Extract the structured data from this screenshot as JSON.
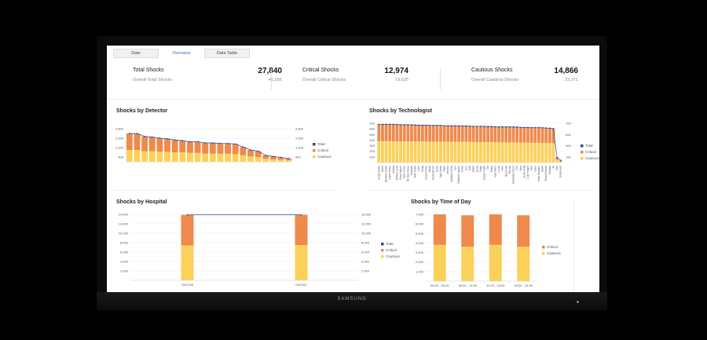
{
  "tabs": [
    "Date",
    "Overview",
    "Data Table"
  ],
  "active_tab": 1,
  "kpis": [
    {
      "label": "Total Shocks",
      "value": "27,840",
      "sub_label": "Overall Total Shocks",
      "sub_value": "41,556"
    },
    {
      "label": "Critical Shocks",
      "value": "12,974",
      "sub_label": "Overall Critical Shocks",
      "sub_value": "19,525"
    },
    {
      "label": "Cautious Shocks",
      "value": "14,866",
      "sub_label": "Overall Cautious Shocks",
      "sub_value": "22,371"
    }
  ],
  "brand": "SAMSUNG",
  "colors": {
    "total": "#2b4c9b",
    "critical": "#ef8a4c",
    "cautious": "#fbd15b",
    "grid": "#ececec"
  },
  "chart_data": [
    {
      "type": "bar",
      "title": "Shocks by Detector",
      "legend": [
        "Total",
        "Critical",
        "Cautious"
      ],
      "legend_position": "right",
      "ylim": [
        0,
        2800
      ],
      "yticks": [
        "2,800",
        "2,000",
        "1,200",
        "400"
      ],
      "y2ticks": [
        "2,800",
        "2,000",
        "1,200",
        "400"
      ],
      "categories": [
        "",
        "",
        "",
        "",
        "",
        "",
        "",
        "",
        "",
        "",
        "",
        "",
        "",
        "",
        "",
        "",
        "",
        "",
        "",
        "",
        "",
        ""
      ],
      "series": [
        {
          "name": "Critical",
          "values": [
            1400,
            1400,
            1250,
            1200,
            1150,
            1100,
            1050,
            1000,
            950,
            950,
            900,
            900,
            880,
            870,
            860,
            700,
            550,
            500,
            300,
            250,
            200,
            150
          ]
        },
        {
          "name": "Cautious",
          "values": [
            1000,
            1000,
            900,
            900,
            850,
            850,
            800,
            800,
            750,
            750,
            700,
            700,
            680,
            680,
            650,
            550,
            450,
            400,
            250,
            200,
            170,
            130
          ]
        },
        {
          "name": "Total",
          "values": [
            2400,
            2400,
            2150,
            2100,
            2000,
            1950,
            1850,
            1800,
            1700,
            1700,
            1600,
            1600,
            1560,
            1550,
            1510,
            1250,
            1000,
            900,
            550,
            450,
            370,
            280
          ]
        }
      ]
    },
    {
      "type": "bar",
      "title": "Shocks by Technologist",
      "legend": [
        "Total",
        "Critical",
        "Cautious"
      ],
      "legend_position": "right",
      "ylim": [
        0,
        700
      ],
      "yticks": [
        "700",
        "600",
        "500",
        "400",
        "300",
        "200",
        "100"
      ],
      "y2ticks": [
        "700",
        "500",
        "300",
        "100"
      ],
      "categories": [
        "Henry Martin",
        "Jason",
        "Brandon Smith",
        "Logan Jones",
        "Ashley",
        "William Scott",
        "Evan Harper",
        "Tyler Jones",
        "Michael Stone",
        "Amanda",
        "Jake Smith",
        "Chris",
        "Emily",
        "Jordan Rose",
        "Sarah",
        "David Brown",
        "Kevin",
        "Kyle Davis",
        "Ryan",
        "Jessica",
        "Matthew Reed",
        "Erin",
        "Matthew Harper",
        "Justin",
        "Eric",
        "Julia",
        "Adam",
        "Jacob",
        "Paige",
        "Jordan Smith",
        "Tim",
        "Ethan",
        "Kyle Ward",
        "Lucas",
        "Alex",
        "Brian Hall",
        "Rachel",
        "Sebastian Wood",
        "Zoe",
        "Nina",
        "Justin Kelly",
        "Luke Knight",
        "Ben",
        "Clara",
        "Evan Sanders",
        "Gavin",
        "Ethan Russell",
        "Hannah",
        "Ali",
        "Dan",
        "Emmanuel"
      ],
      "series": [
        {
          "name": "Critical",
          "values": [
            300,
            300,
            300,
            300,
            300,
            300,
            295,
            295,
            295,
            295,
            295,
            290,
            290,
            290,
            290,
            290,
            290,
            290,
            285,
            285,
            285,
            285,
            285,
            285,
            285,
            280,
            280,
            280,
            280,
            280,
            280,
            280,
            275,
            275,
            275,
            275,
            275,
            275,
            275,
            270,
            270,
            270,
            270,
            270,
            270,
            270,
            265,
            265,
            260,
            40,
            20
          ]
        },
        {
          "name": "Cautious",
          "values": [
            380,
            380,
            380,
            380,
            380,
            378,
            378,
            378,
            378,
            375,
            375,
            375,
            375,
            375,
            372,
            372,
            372,
            372,
            370,
            370,
            370,
            370,
            368,
            368,
            368,
            368,
            365,
            365,
            365,
            365,
            362,
            362,
            362,
            360,
            360,
            360,
            358,
            358,
            358,
            355,
            355,
            355,
            352,
            352,
            352,
            350,
            350,
            348,
            345,
            50,
            20
          ]
        },
        {
          "name": "Total",
          "values": [
            680,
            680,
            680,
            680,
            680,
            678,
            673,
            673,
            673,
            670,
            670,
            665,
            665,
            665,
            662,
            662,
            662,
            662,
            655,
            655,
            655,
            655,
            653,
            653,
            653,
            648,
            645,
            645,
            645,
            645,
            642,
            642,
            637,
            635,
            635,
            635,
            633,
            633,
            633,
            625,
            625,
            625,
            622,
            622,
            622,
            620,
            615,
            613,
            605,
            90,
            40
          ]
        }
      ]
    },
    {
      "type": "bar",
      "title": "Shocks by Hospital",
      "legend": [
        "Total",
        "Critical",
        "Cautious"
      ],
      "legend_position": "right",
      "ylim": [
        0,
        14000
      ],
      "yticks": [
        "14,000",
        "12,000",
        "10,000",
        "8,000",
        "6,000",
        "4,000",
        "2,000"
      ],
      "y2ticks": [
        "14,000",
        "12,000",
        "10,000",
        "8,000",
        "6,000",
        "4,000",
        "2,000"
      ],
      "categories": [
        "SHC303",
        "SHC301"
      ],
      "series": [
        {
          "name": "Critical",
          "values": [
            6500,
            6400
          ]
        },
        {
          "name": "Cautious",
          "values": [
            7400,
            7500
          ]
        },
        {
          "name": "Total",
          "values": [
            13900,
            13900
          ]
        }
      ]
    },
    {
      "type": "bar",
      "title": "Shocks by Time of Day",
      "legend": [
        "Critical",
        "Cautious"
      ],
      "legend_position": "right",
      "ylim": [
        0,
        7000
      ],
      "yticks": [
        "7,000",
        "6,000",
        "5,000",
        "4,000",
        "3,000",
        "2,000",
        "1,000"
      ],
      "categories": [
        "00:00 - 06:00",
        "06:00 - 12:00",
        "12:00 - 18:00",
        "18:00 - 24:00"
      ],
      "series": [
        {
          "name": "Critical",
          "values": [
            3200,
            3300,
            3200,
            3300
          ]
        },
        {
          "name": "Cautious",
          "values": [
            3800,
            3600,
            3800,
            3600
          ]
        }
      ]
    }
  ]
}
